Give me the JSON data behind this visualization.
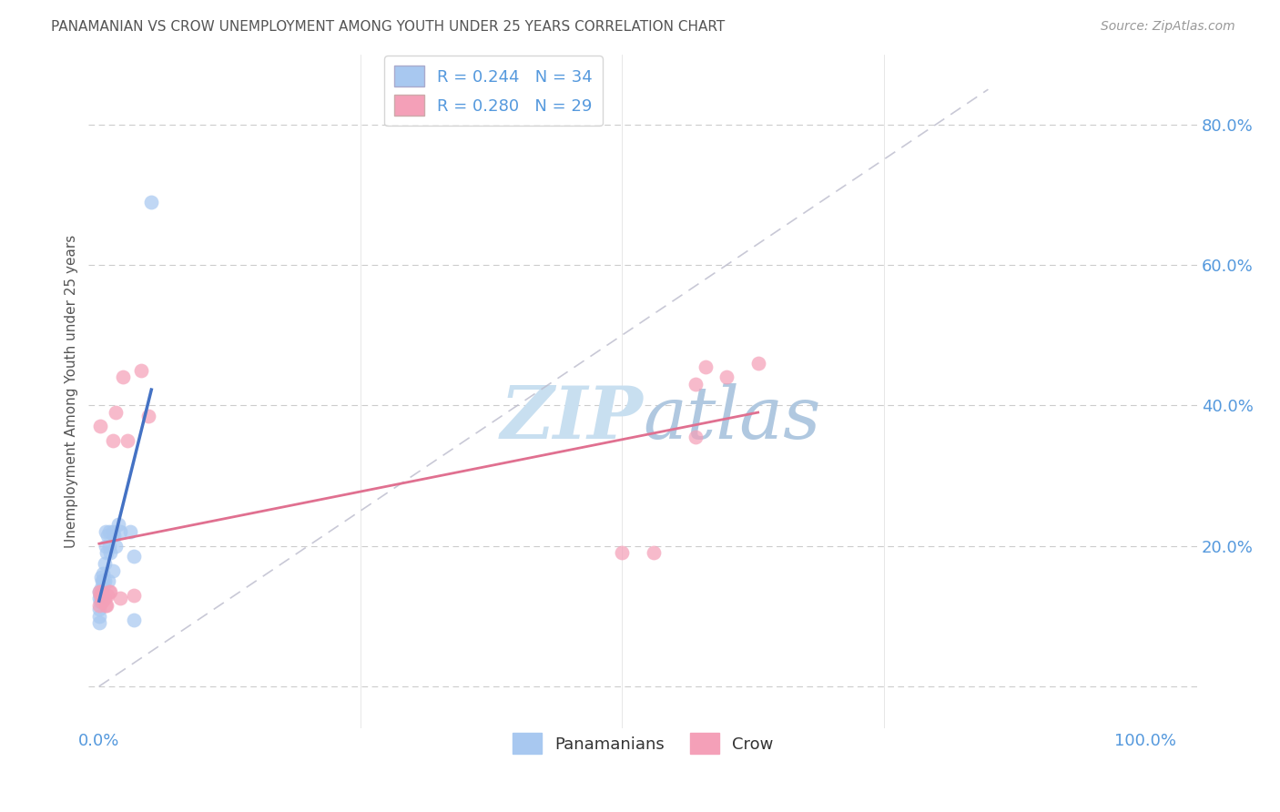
{
  "title": "PANAMANIAN VS CROW UNEMPLOYMENT AMONG YOUTH UNDER 25 YEARS CORRELATION CHART",
  "source": "Source: ZipAtlas.com",
  "ylabel": "Unemployment Among Youth under 25 years",
  "legend_bottom": [
    "Panamanians",
    "Crow"
  ],
  "series": {
    "blue": {
      "label": "Panamanians",
      "R": 0.244,
      "N": 34,
      "color": "#A8C8F0",
      "line_color": "#4472C4",
      "x": [
        0.0,
        0.0,
        0.0,
        0.0,
        0.0,
        0.001,
        0.001,
        0.002,
        0.002,
        0.003,
        0.003,
        0.004,
        0.004,
        0.004,
        0.005,
        0.005,
        0.006,
        0.006,
        0.007,
        0.008,
        0.009,
        0.01,
        0.01,
        0.011,
        0.013,
        0.013,
        0.014,
        0.016,
        0.018,
        0.02,
        0.03,
        0.033,
        0.033,
        0.05
      ],
      "y": [
        0.135,
        0.125,
        0.11,
        0.1,
        0.09,
        0.13,
        0.12,
        0.155,
        0.14,
        0.15,
        0.13,
        0.16,
        0.15,
        0.14,
        0.175,
        0.15,
        0.22,
        0.2,
        0.19,
        0.215,
        0.15,
        0.22,
        0.2,
        0.19,
        0.22,
        0.165,
        0.215,
        0.2,
        0.23,
        0.22,
        0.22,
        0.185,
        0.095,
        0.69
      ]
    },
    "pink": {
      "label": "Crow",
      "R": 0.28,
      "N": 29,
      "color": "#F4A0B8",
      "line_color": "#E07090",
      "x": [
        0.0,
        0.0,
        0.001,
        0.001,
        0.002,
        0.003,
        0.003,
        0.004,
        0.005,
        0.006,
        0.007,
        0.008,
        0.01,
        0.011,
        0.013,
        0.016,
        0.02,
        0.023,
        0.027,
        0.033,
        0.04,
        0.047,
        0.5,
        0.53,
        0.57,
        0.57,
        0.58,
        0.6,
        0.63
      ],
      "y": [
        0.135,
        0.115,
        0.37,
        0.13,
        0.135,
        0.13,
        0.12,
        0.125,
        0.125,
        0.115,
        0.115,
        0.13,
        0.135,
        0.135,
        0.35,
        0.39,
        0.125,
        0.44,
        0.35,
        0.13,
        0.45,
        0.385,
        0.19,
        0.19,
        0.355,
        0.43,
        0.455,
        0.44,
        0.46
      ]
    }
  },
  "xlim": [
    -0.01,
    1.05
  ],
  "ylim": [
    -0.06,
    0.9
  ],
  "yticks": [
    0.0,
    0.2,
    0.4,
    0.6,
    0.8
  ],
  "ytick_labels": [
    "",
    "20.0%",
    "40.0%",
    "60.0%",
    "80.0%"
  ],
  "xticks": [
    0.0,
    0.25,
    0.5,
    0.75,
    1.0
  ],
  "xtick_labels_show": [
    "0.0%",
    "100.0%"
  ],
  "xtick_labels_pos": [
    0.0,
    1.0
  ],
  "watermark_zip": "ZIP",
  "watermark_atlas": "atlas",
  "watermark_color_zip": "#c8dff0",
  "watermark_color_atlas": "#b0c8e0",
  "background": "#ffffff",
  "grid_color": "#cccccc",
  "title_color": "#555555",
  "axis_color": "#5599dd",
  "diagonal_color": "#bbbbcc"
}
